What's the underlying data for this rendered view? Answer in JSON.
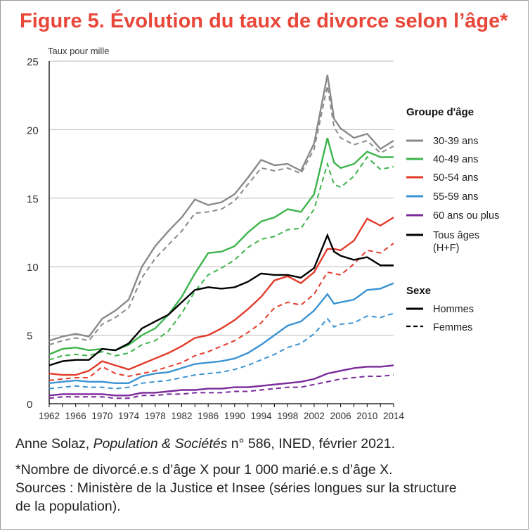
{
  "title": "Figure 5. Évolution du taux de divorce selon l’âge*",
  "source": {
    "author": "Anne Solaz, ",
    "journal": "Population & Sociétés",
    "rest": " n° 586, INED, février 2021."
  },
  "notes": [
    "*Nombre de divorcé.e.s d’âge X pour 1 000 marié.e.s d’âge X.",
    "Sources : Ministère de la Justice et Insee (séries longues sur la structure",
    "de la population)."
  ],
  "colors": {
    "title": "#e8473a",
    "grid": "#b8b8b8",
    "30-39": "#8a8a8a",
    "40-49": "#3cb44b",
    "50-54": "#e23b2a",
    "55-59": "#3a93d3",
    "60+": "#7a2a9a",
    "all": "#000000"
  },
  "chart_data": {
    "type": "line",
    "ylabel": "Taux pour mille",
    "ylim": [
      0,
      25
    ],
    "yticks": [
      0,
      5,
      10,
      15,
      20,
      25
    ],
    "xlim": [
      1962,
      2014
    ],
    "xticks": [
      1962,
      1966,
      1970,
      1974,
      1978,
      1982,
      1986,
      1990,
      1994,
      1998,
      2002,
      2006,
      2010,
      2014
    ],
    "grid": "horizontal",
    "legend_position": "right",
    "legend_groups": [
      {
        "title": "Groupe d'âge",
        "entries": [
          "30-39 ans",
          "40-49 ans",
          "50-54 ans",
          "55-59 ans",
          "60 ans ou plus",
          "Tous âges",
          "(H+F)"
        ]
      },
      {
        "title": "Sexe",
        "entries": [
          "Hommes",
          "Femmes"
        ]
      }
    ],
    "x": [
      1962,
      1964,
      1966,
      1968,
      1970,
      1972,
      1974,
      1976,
      1978,
      1980,
      1982,
      1984,
      1986,
      1988,
      1990,
      1992,
      1994,
      1996,
      1998,
      2000,
      2002,
      2004,
      2005,
      2006,
      2008,
      2010,
      2012,
      2014
    ],
    "series": [
      {
        "name": "30-39 ans",
        "sex": "Hommes",
        "values": [
          4.6,
          4.9,
          5.1,
          4.9,
          6.2,
          6.8,
          7.6,
          10.0,
          11.5,
          12.6,
          13.6,
          14.9,
          14.5,
          14.7,
          15.3,
          16.5,
          17.8,
          17.4,
          17.5,
          17.0,
          19.0,
          24.0,
          20.8,
          20.1,
          19.4,
          19.7,
          18.6,
          19.2
        ]
      },
      {
        "name": "30-39 ans",
        "sex": "Femmes",
        "values": [
          4.3,
          4.6,
          4.8,
          4.6,
          5.8,
          6.3,
          7.0,
          9.2,
          10.6,
          11.6,
          12.6,
          13.9,
          14.0,
          14.2,
          14.8,
          16.0,
          17.2,
          17.0,
          17.2,
          16.8,
          18.6,
          23.2,
          20.2,
          19.4,
          18.9,
          19.2,
          18.3,
          18.8
        ]
      },
      {
        "name": "40-49 ans",
        "sex": "Hommes",
        "values": [
          3.6,
          4.0,
          4.1,
          3.9,
          4.0,
          3.9,
          4.3,
          5.0,
          5.5,
          6.5,
          7.8,
          9.5,
          11.0,
          11.1,
          11.5,
          12.5,
          13.3,
          13.6,
          14.2,
          14.0,
          15.3,
          19.4,
          17.6,
          17.2,
          17.5,
          18.4,
          18.0,
          18.0
        ]
      },
      {
        "name": "40-49 ans",
        "sex": "Femmes",
        "values": [
          3.2,
          3.5,
          3.6,
          3.5,
          3.8,
          3.5,
          3.7,
          4.3,
          4.6,
          5.3,
          6.6,
          8.2,
          9.4,
          9.9,
          10.5,
          11.4,
          12.0,
          12.2,
          12.7,
          12.8,
          14.2,
          17.5,
          16.0,
          15.8,
          16.6,
          18.0,
          17.1,
          17.3
        ]
      },
      {
        "name": "50-54 ans",
        "sex": "Hommes",
        "values": [
          2.2,
          2.1,
          2.1,
          2.4,
          3.1,
          2.8,
          2.5,
          2.9,
          3.3,
          3.7,
          4.2,
          4.8,
          5.0,
          5.5,
          6.1,
          6.9,
          7.8,
          9.0,
          9.3,
          8.8,
          9.6,
          11.3,
          11.3,
          11.2,
          11.9,
          13.5,
          13.0,
          13.6
        ]
      },
      {
        "name": "50-54 ans",
        "sex": "Femmes",
        "values": [
          1.7,
          1.8,
          1.9,
          1.9,
          2.7,
          2.2,
          2.0,
          2.2,
          2.4,
          2.7,
          3.0,
          3.5,
          3.8,
          4.2,
          4.6,
          5.2,
          5.9,
          7.0,
          7.4,
          7.2,
          8.0,
          9.6,
          9.5,
          9.4,
          10.2,
          11.2,
          11.0,
          11.7
        ]
      },
      {
        "name": "55-59 ans",
        "sex": "Hommes",
        "values": [
          1.5,
          1.6,
          1.7,
          1.6,
          1.6,
          1.5,
          1.5,
          2.0,
          2.2,
          2.3,
          2.6,
          2.9,
          3.0,
          3.1,
          3.3,
          3.7,
          4.3,
          5.0,
          5.7,
          6.0,
          6.8,
          8.0,
          7.3,
          7.4,
          7.6,
          8.3,
          8.4,
          8.8
        ]
      },
      {
        "name": "55-59 ans",
        "sex": "Femmes",
        "values": [
          1.1,
          1.2,
          1.3,
          1.2,
          1.2,
          1.1,
          1.2,
          1.5,
          1.6,
          1.7,
          1.9,
          2.1,
          2.2,
          2.3,
          2.5,
          2.8,
          3.2,
          3.6,
          4.1,
          4.4,
          5.1,
          6.2,
          5.6,
          5.8,
          5.9,
          6.4,
          6.3,
          6.6
        ]
      },
      {
        "name": "60 ans ou plus",
        "sex": "Hommes",
        "values": [
          0.6,
          0.7,
          0.7,
          0.7,
          0.7,
          0.6,
          0.6,
          0.8,
          0.8,
          0.9,
          1.0,
          1.0,
          1.1,
          1.1,
          1.2,
          1.2,
          1.3,
          1.4,
          1.5,
          1.6,
          1.8,
          2.2,
          2.3,
          2.4,
          2.6,
          2.7,
          2.7,
          2.8
        ]
      },
      {
        "name": "60 ans ou plus",
        "sex": "Femmes",
        "values": [
          0.4,
          0.5,
          0.5,
          0.5,
          0.5,
          0.4,
          0.4,
          0.6,
          0.6,
          0.7,
          0.7,
          0.8,
          0.8,
          0.8,
          0.9,
          0.9,
          1.0,
          1.1,
          1.2,
          1.2,
          1.4,
          1.6,
          1.7,
          1.8,
          1.9,
          2.0,
          2.0,
          2.1
        ]
      },
      {
        "name": "Tous âges (H+F)",
        "sex": "Hommes",
        "values": [
          2.8,
          3.1,
          3.2,
          3.2,
          4.0,
          3.9,
          4.4,
          5.5,
          6.0,
          6.5,
          7.4,
          8.3,
          8.5,
          8.4,
          8.5,
          8.9,
          9.5,
          9.4,
          9.4,
          9.2,
          9.9,
          12.3,
          11.1,
          10.8,
          10.5,
          10.7,
          10.1,
          10.1
        ]
      }
    ]
  }
}
